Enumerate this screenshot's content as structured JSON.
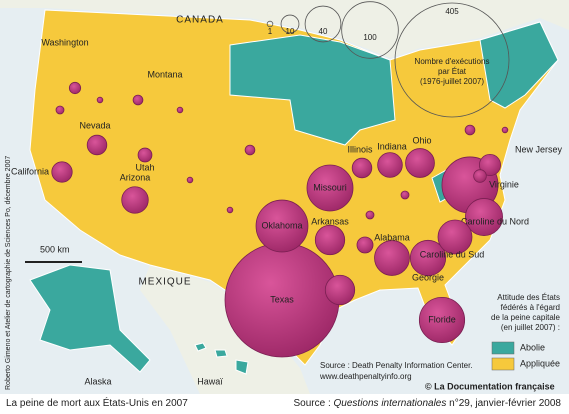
{
  "map": {
    "labels": {
      "canada": "CANADA",
      "mexique": "MEXIQUE",
      "alaska": "Alaska",
      "hawaii": "Hawaï",
      "scale": "500 km",
      "new_jersey": "New Jersey"
    },
    "legend_size": {
      "title_lines": [
        "Nombre d'exécutions",
        "par État",
        "(1976-juillet 2007)"
      ],
      "values": [
        1,
        10,
        40,
        100,
        405
      ]
    },
    "bubbles": [
      {
        "name": "Texas",
        "value": 405
      },
      {
        "name": "Virginie",
        "value": 98
      },
      {
        "name": "Oklahoma",
        "value": 84
      },
      {
        "name": "Missouri",
        "value": 66
      },
      {
        "name": "Floride",
        "value": 64
      },
      {
        "name": "Caroline du Nord",
        "value": 43
      },
      {
        "name": "Georgie",
        "value": 39
      },
      {
        "name": "Caroline du Sud",
        "value": 36
      },
      {
        "name": "Alabama",
        "value": 38
      },
      {
        "name": "Arkansas",
        "value": 27
      },
      {
        "name": "Ohio",
        "value": 26
      },
      {
        "name": null,
        "value": 27
      },
      {
        "name": "Arizona",
        "value": 22
      },
      {
        "name": "Indiana",
        "value": 19
      },
      {
        "name": null,
        "value": 14
      },
      {
        "name": "Illinois",
        "value": 12
      },
      {
        "name": "California",
        "value": 13
      },
      {
        "name": "Nevada",
        "value": 12
      },
      {
        "name": null,
        "value": 8
      },
      {
        "name": "Utah",
        "value": 6
      },
      {
        "name": null,
        "value": 5
      },
      {
        "name": "Washington",
        "value": 4
      },
      {
        "name": null,
        "value": 2
      },
      {
        "name": "Montana",
        "value": 3
      },
      {
        "name": null,
        "value": 3
      },
      {
        "name": null,
        "value": 2
      },
      {
        "name": null,
        "value": 3
      },
      {
        "name": null,
        "value": 2
      },
      {
        "name": null,
        "value": 1
      },
      {
        "name": null,
        "value": 1
      },
      {
        "name": null,
        "value": 1
      },
      {
        "name": null,
        "value": 1
      },
      {
        "name": null,
        "value": 1
      }
    ],
    "legend_status": {
      "title_lines": [
        "Attitude des États",
        "fédérés à l'égard",
        "de la peine capitale",
        "(en juillet 2007) :"
      ],
      "items": [
        {
          "label": "Abolie",
          "color": "#3aa89e"
        },
        {
          "label": "Appliquée",
          "color": "#f6c93c"
        }
      ]
    },
    "credits": {
      "side": "Roberto Gimeno et Atelier de cartographie de Sciences Po, décembre 2007",
      "source": "Source : Death Penalty Information Center.",
      "url": "www.deathpenaltyinfo.org",
      "publisher": "© La Documentation française"
    }
  },
  "footer": {
    "title": "La peine de mort aux États-Unis en 2007",
    "source_prefix": "Source : ",
    "source_journal": "Questions internationales",
    "source_rest": " n°29, janvier-février 2008"
  }
}
